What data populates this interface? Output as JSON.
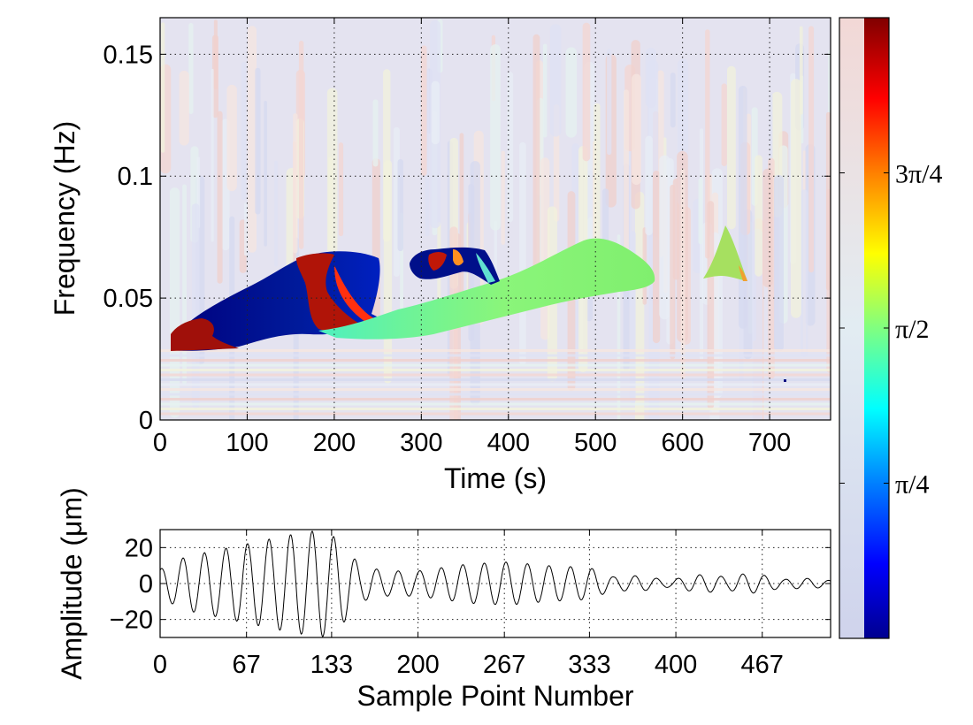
{
  "chart_data": [
    {
      "type": "heatmap",
      "description_free": true,
      "xlabel": "Time (s)",
      "ylabel": "Frequency (Hz)",
      "xlim": [
        0,
        770
      ],
      "ylim": [
        0,
        0.165
      ],
      "xticks": [
        0,
        100,
        200,
        300,
        400,
        500,
        600,
        700
      ],
      "yticks": [
        0,
        0.05,
        0.1,
        0.15
      ],
      "xtick_labels": [
        "0",
        "100",
        "200",
        "300",
        "400",
        "500",
        "600",
        "700"
      ],
      "ytick_labels": [
        "0",
        "0.05",
        "0.1",
        "0.15"
      ],
      "grid": true,
      "colorbar": {
        "range": [
          0,
          3.1416
        ],
        "tick_labels": [
          "π/4",
          "π/2",
          "3π/4"
        ],
        "tick_values": [
          0.7854,
          1.5708,
          2.3562
        ],
        "colormap": "jet"
      },
      "regions": [
        {
          "phase": "low",
          "time_range": [
            10,
            255
          ],
          "freq_range": [
            0.03,
            0.068
          ]
        },
        {
          "phase": "high",
          "time_range": [
            10,
            70
          ],
          "freq_range": [
            0.03,
            0.042
          ]
        },
        {
          "phase": "high",
          "time_range": [
            140,
            245
          ],
          "freq_range": [
            0.035,
            0.068
          ]
        },
        {
          "phase": "mid",
          "time_range": [
            200,
            570
          ],
          "freq_range": [
            0.033,
            0.075
          ]
        },
        {
          "phase": "low-high",
          "time_range": [
            290,
            385
          ],
          "freq_range": [
            0.058,
            0.072
          ]
        },
        {
          "phase": "mid-high",
          "time_range": [
            620,
            670
          ],
          "freq_range": [
            0.058,
            0.08
          ]
        }
      ]
    },
    {
      "type": "line",
      "xlabel": "Sample Point Number",
      "ylabel": "Amplitude (μm)",
      "xlim": [
        0,
        520
      ],
      "ylim": [
        -30,
        30
      ],
      "xticks": [
        0,
        67,
        133,
        200,
        267,
        333,
        400,
        467
      ],
      "yticks": [
        -20,
        0,
        20
      ],
      "xtick_labels": [
        "0",
        "67",
        "133",
        "200",
        "267",
        "333",
        "400",
        "467"
      ],
      "ytick_labels": [
        "−20",
        "0",
        "20"
      ],
      "grid": true,
      "series": [
        {
          "envelope": [
            [
              0,
              8
            ],
            [
              20,
              15
            ],
            [
              60,
              21
            ],
            [
              100,
              27
            ],
            [
              125,
              30
            ],
            [
              140,
              24
            ],
            [
              155,
              10
            ],
            [
              175,
              7
            ],
            [
              200,
              7
            ],
            [
              240,
              11
            ],
            [
              270,
              12
            ],
            [
              300,
              10
            ],
            [
              330,
              9
            ],
            [
              360,
              5
            ],
            [
              390,
              3
            ],
            [
              420,
              5
            ],
            [
              450,
              6
            ],
            [
              480,
              4
            ],
            [
              520,
              2
            ]
          ],
          "period_samples": 16.7,
          "color": "#000000"
        }
      ]
    }
  ]
}
